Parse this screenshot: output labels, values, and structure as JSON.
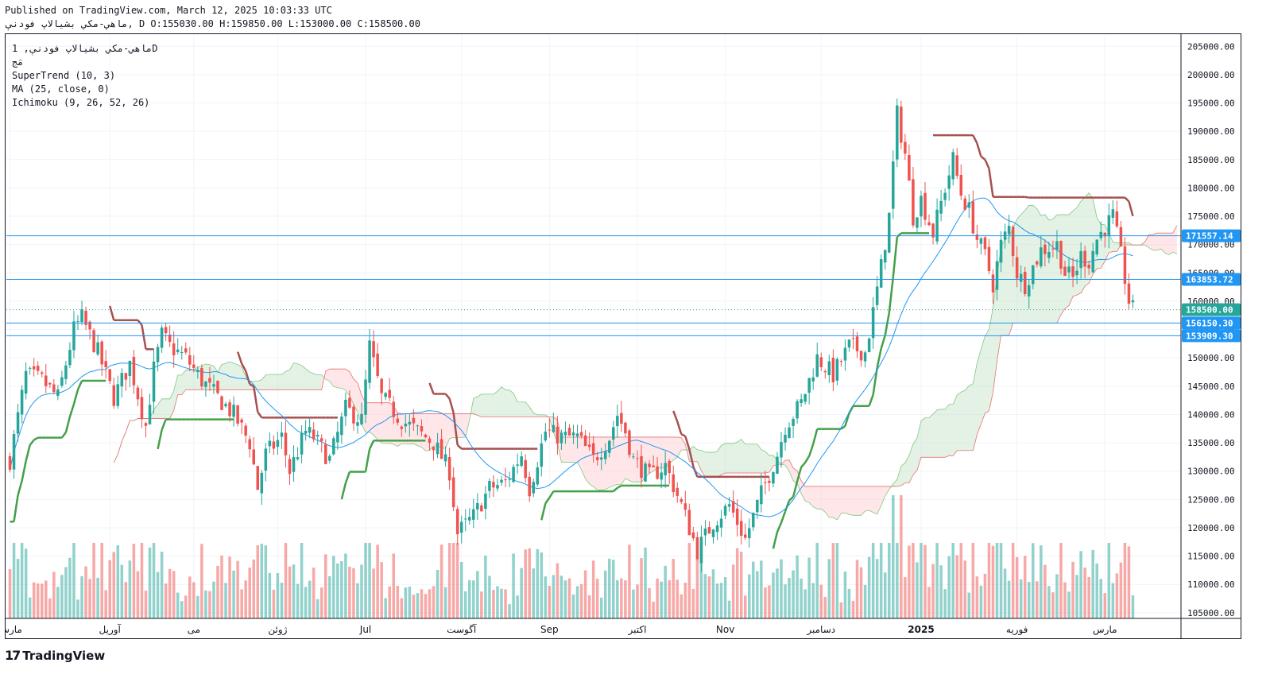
{
  "header": {
    "published": "Published on TradingView.com, March 12, 2025 10:03:33 UTC",
    "ohlc_line": "ماهي-مكي بشيالاپ فودنې, D O:155030.00 H:159850.00 L:153000.00 C:158500.00"
  },
  "legend": {
    "symbol": "ماهي-مكي بشيالاپ فودنې, 1D",
    "line2": "مَج",
    "supertrend": "SuperTrend (10, 3)",
    "ma": "MA (25, close, 0)",
    "ichimoku": "Ichimoku (9, 26, 52, 26)"
  },
  "brand": {
    "logo": "17",
    "name": "TradingView"
  },
  "colors": {
    "up": "#26a69a",
    "down": "#ef5350",
    "supertrend_up": "#43a047",
    "supertrend_down": "#a5504f",
    "ma": "#2196f3",
    "cloud_green": "#c8e6c9",
    "cloud_red": "#ffcdd2",
    "hline": "#2196f3",
    "label_bg": "#2196f3",
    "close_label_bg": "#26a69a"
  },
  "chart_data": {
    "type": "candlestick",
    "interval": "1D",
    "y_axis": {
      "ticks": [
        "205000.00",
        "200000.00",
        "195000.00",
        "190000.00",
        "185000.00",
        "180000.00",
        "175000.00",
        "170000.00",
        "165000.00",
        "160000.00",
        "155000.00",
        "150000.00",
        "145000.00",
        "140000.00",
        "135000.00",
        "130000.00",
        "125000.00",
        "120000.00",
        "115000.00",
        "110000.00",
        "105000.00"
      ],
      "range": [
        104000,
        207000
      ]
    },
    "x_axis": {
      "labels": [
        "مارس",
        "آوريل",
        "مى",
        "ژوئن",
        "Jul",
        "آگوست",
        "Sep",
        "اکتبر",
        "Nov",
        "دسامبر",
        "2025",
        "فوريه",
        "مارس"
      ],
      "bar_index": [
        0,
        25,
        46,
        67,
        89,
        113,
        135,
        157,
        179,
        203,
        228,
        252,
        274
      ]
    },
    "bar_count": 282,
    "price_lines": [
      {
        "value": 171557.14,
        "label": "171557.14"
      },
      {
        "value": 163853.72,
        "label": "163853.72"
      },
      {
        "value": 156150.3,
        "label": "156150.30"
      },
      {
        "value": 153909.3,
        "label": "153909.30"
      }
    ],
    "close_line": {
      "value": 158500.0,
      "label": "158500.00"
    },
    "anchors_close": [
      [
        0,
        132000
      ],
      [
        4,
        147000
      ],
      [
        8,
        146000
      ],
      [
        12,
        143000
      ],
      [
        16,
        155000
      ],
      [
        18,
        157000
      ],
      [
        22,
        151000
      ],
      [
        26,
        143000
      ],
      [
        30,
        149000
      ],
      [
        34,
        138000
      ],
      [
        36,
        148000
      ],
      [
        38,
        154000
      ],
      [
        40,
        152000
      ],
      [
        44,
        150000
      ],
      [
        48,
        146000
      ],
      [
        52,
        143000
      ],
      [
        56,
        140000
      ],
      [
        60,
        135000
      ],
      [
        62,
        127000
      ],
      [
        64,
        133000
      ],
      [
        68,
        136000
      ],
      [
        70,
        130000
      ],
      [
        74,
        137000
      ],
      [
        76,
        136000
      ],
      [
        80,
        132000
      ],
      [
        84,
        141000
      ],
      [
        88,
        139000
      ],
      [
        90,
        152000
      ],
      [
        93,
        143000
      ],
      [
        98,
        139000
      ],
      [
        102,
        137000
      ],
      [
        106,
        135000
      ],
      [
        110,
        130000
      ],
      [
        112,
        119000
      ],
      [
        116,
        122000
      ],
      [
        120,
        127000
      ],
      [
        124,
        128000
      ],
      [
        128,
        133000
      ],
      [
        130,
        127000
      ],
      [
        134,
        137000
      ],
      [
        138,
        136000
      ],
      [
        142,
        136000
      ],
      [
        146,
        132000
      ],
      [
        150,
        136000
      ],
      [
        152,
        140000
      ],
      [
        154,
        137000
      ],
      [
        156,
        132000
      ],
      [
        160,
        129000
      ],
      [
        164,
        131000
      ],
      [
        168,
        124000
      ],
      [
        172,
        116000
      ],
      [
        176,
        121000
      ],
      [
        180,
        124000
      ],
      [
        184,
        118000
      ],
      [
        188,
        126000
      ],
      [
        192,
        133000
      ],
      [
        194,
        138000
      ],
      [
        198,
        142000
      ],
      [
        202,
        150000
      ],
      [
        206,
        147000
      ],
      [
        210,
        152000
      ],
      [
        214,
        151000
      ],
      [
        216,
        158000
      ],
      [
        218,
        166000
      ],
      [
        220,
        175000
      ],
      [
        222,
        193000
      ],
      [
        224,
        186000
      ],
      [
        226,
        175000
      ],
      [
        228,
        178000
      ],
      [
        231,
        172000
      ],
      [
        234,
        180000
      ],
      [
        236,
        185000
      ],
      [
        238,
        179000
      ],
      [
        240,
        176000
      ],
      [
        242,
        171000
      ],
      [
        244,
        168000
      ],
      [
        246,
        163000
      ],
      [
        248,
        170000
      ],
      [
        250,
        173000
      ],
      [
        252,
        165000
      ],
      [
        254,
        163000
      ],
      [
        256,
        166000
      ],
      [
        258,
        169000
      ],
      [
        262,
        170000
      ],
      [
        264,
        165000
      ],
      [
        266,
        164000
      ],
      [
        268,
        168000
      ],
      [
        270,
        167000
      ],
      [
        272,
        171000
      ],
      [
        274,
        173000
      ],
      [
        276,
        175000
      ],
      [
        278,
        168000
      ],
      [
        280,
        160000
      ],
      [
        281,
        158500
      ]
    ],
    "volume": {
      "max": 1
    }
  }
}
